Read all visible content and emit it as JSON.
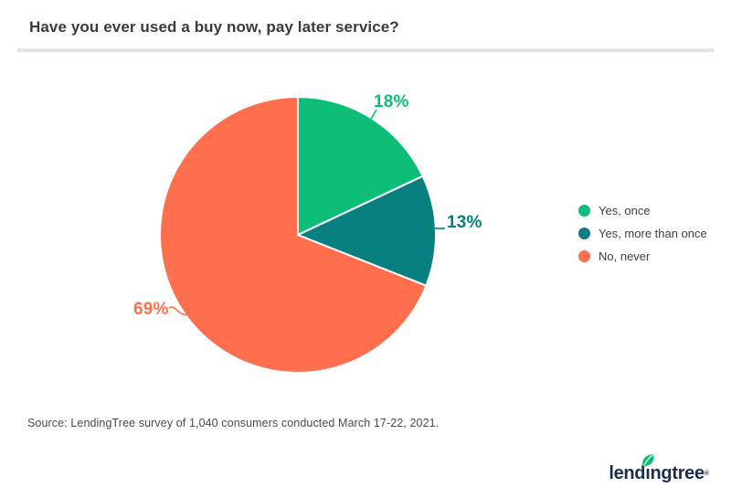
{
  "header": {
    "title": "Have you ever used a buy now, pay later service?"
  },
  "chart_data": {
    "type": "pie",
    "title": "Have you ever used a buy now, pay later service?",
    "start_angle_deg": 0,
    "direction": "clockwise",
    "legend_position": "right",
    "slices": [
      {
        "label": "Yes, once",
        "value": 18,
        "display": "18%",
        "color": "#0dbe76"
      },
      {
        "label": "Yes, more than once",
        "value": 13,
        "display": "13%",
        "color": "#088080"
      },
      {
        "label": "No, never",
        "value": 69,
        "display": "69%",
        "color": "#ff6f4d"
      }
    ]
  },
  "footer": {
    "source": "Source: LendingTree survey of 1,040 consumers conducted March 17-22, 2021."
  },
  "logo": {
    "text_pre": "lend",
    "text_i": "ı",
    "text_post": "ngtree",
    "registered": "®"
  },
  "colors": {
    "title_text": "#3b3b3b",
    "divider": "#e4e4e4",
    "legend_text": "#3f3f3f",
    "source_text": "#4b4b4b",
    "logo_navy": "#1c2e49",
    "logo_leaf": "#00c06e",
    "background": "#ffffff"
  }
}
